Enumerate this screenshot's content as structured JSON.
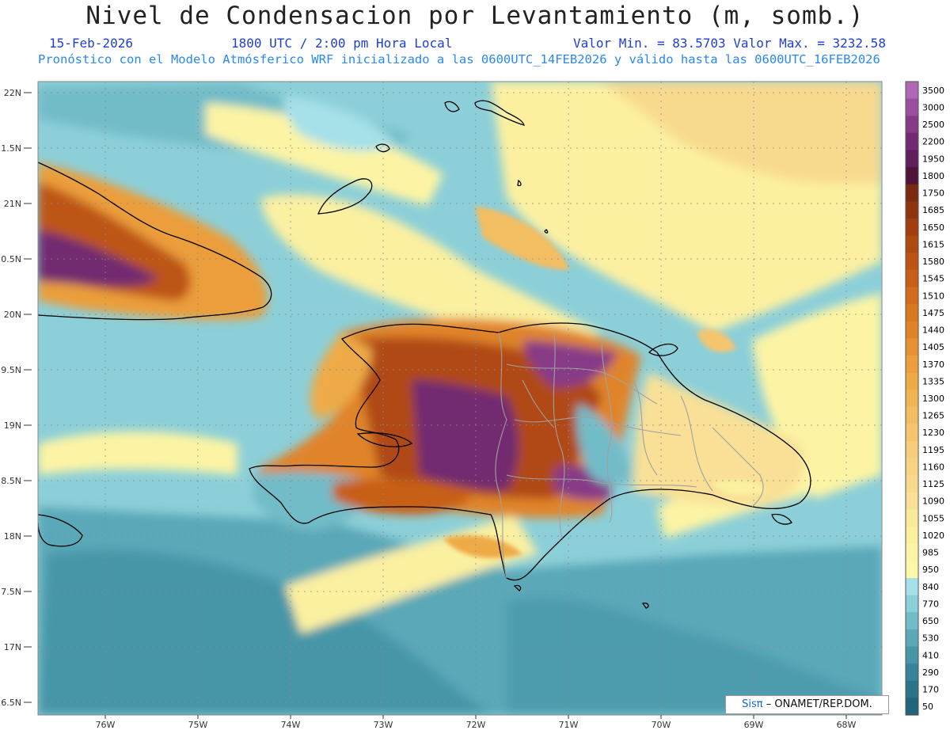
{
  "header": {
    "title": "Nivel de Condensacion por Levantamiento (m, somb.)",
    "date": "15-Feb-2026",
    "time": "1800 UTC / 2:00 pm Hora Local",
    "minmax": "Valor Min. = 83.5703  Valor Max. = 3232.58",
    "model_line": "Pronóstico con el Modelo Atmósferico WRF inicializado a las 0600UTC_14FEB2026 y válido hasta las  0600UTC_16FEB2026"
  },
  "axes": {
    "lat_labels": [
      "22N",
      "1.5N",
      "21N",
      "0.5N",
      "20N",
      "9.5N",
      "19N",
      "8.5N",
      "18N",
      "7.5N",
      "17N",
      "6.5N"
    ],
    "lon_labels": [
      "76W",
      "75W",
      "74W",
      "73W",
      "72W",
      "71W",
      "70W",
      "69W",
      "68W"
    ]
  },
  "colorbar": {
    "labels": [
      "3500",
      "3000",
      "2500",
      "2200",
      "1950",
      "1800",
      "1750",
      "1685",
      "1650",
      "1615",
      "1580",
      "1545",
      "1510",
      "1475",
      "1440",
      "1405",
      "1370",
      "1335",
      "1300",
      "1265",
      "1230",
      "1195",
      "1160",
      "1125",
      "1090",
      "1055",
      "1020",
      "985",
      "950",
      "840",
      "770",
      "650",
      "530",
      "410",
      "290",
      "170",
      "50"
    ],
    "colors": [
      "#b067b8",
      "#9a4f9e",
      "#873b87",
      "#722a70",
      "#5f1f5a",
      "#4e1438",
      "#7a2a12",
      "#8e3410",
      "#a03e10",
      "#b04812",
      "#bd5414",
      "#c85f18",
      "#d26c1c",
      "#da7822",
      "#e0842a",
      "#e69232",
      "#eb9e3a",
      "#eeaa46",
      "#f1b454",
      "#f3bd62",
      "#f5c56e",
      "#f6cd7a",
      "#f7d484",
      "#f8da8e",
      "#f9e096",
      "#faea9c",
      "#fbf0a0",
      "#fcf4a4",
      "#fdf7a8",
      "#a6e0e8",
      "#8ccfd8",
      "#72bcc8",
      "#5aa8b8",
      "#4796a8",
      "#378498",
      "#2a7488",
      "#1f6478"
    ]
  },
  "credit": {
    "brand": "Sisπ",
    "text": "– ONAMET/REP.DOM."
  }
}
